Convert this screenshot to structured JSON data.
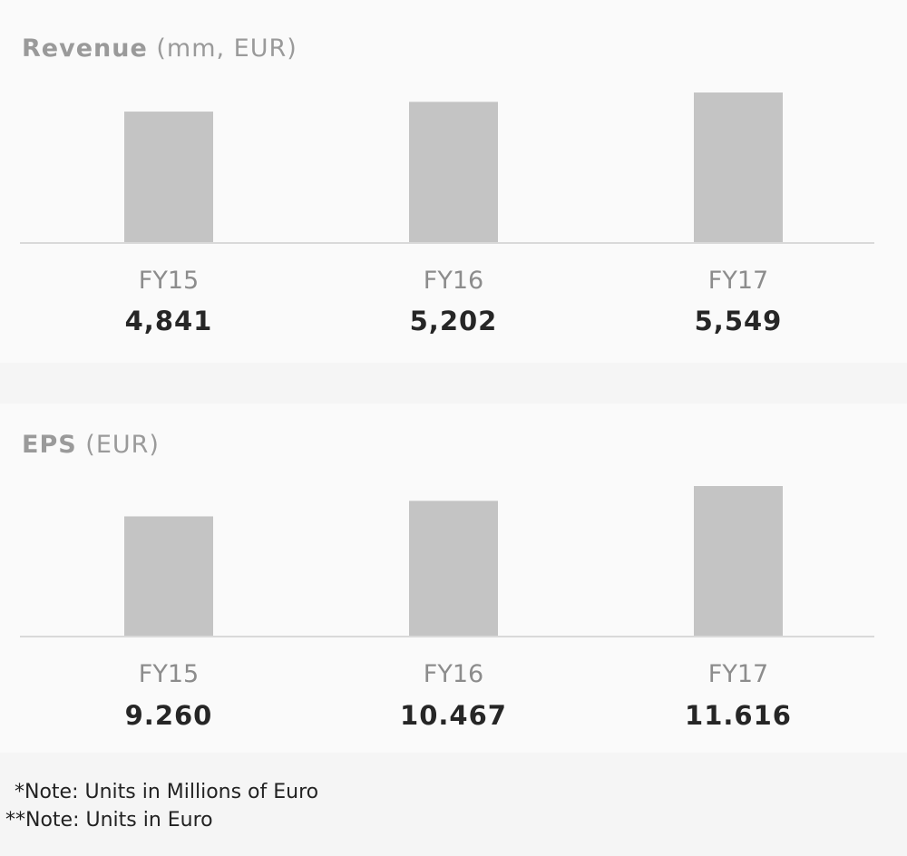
{
  "revenue_panel": {
    "title_main": "Revenue",
    "title_unit": "(mm, EUR)"
  },
  "eps_panel": {
    "title_main": "EPS",
    "title_unit": "(EUR)"
  },
  "chart_data": [
    {
      "type": "bar",
      "title": "Revenue (mm, EUR)",
      "categories": [
        "FY15",
        "FY16",
        "FY17"
      ],
      "values": [
        4841,
        5202,
        5549
      ],
      "value_labels": [
        "4,841",
        "5,202",
        "5,549"
      ],
      "color": "#c4c4c4",
      "baseline_color": "#d9d9d9"
    },
    {
      "type": "bar",
      "title": "EPS (EUR)",
      "categories": [
        "FY15",
        "FY16",
        "FY17"
      ],
      "values": [
        9.26,
        10.467,
        11.616
      ],
      "value_labels": [
        "9.260",
        "10.467",
        "11.616"
      ],
      "color": "#c4c4c4",
      "baseline_color": "#d9d9d9"
    }
  ],
  "notes": {
    "note1": "*Note: Units in Millions of Euro",
    "note2": "**Note: Units in Euro"
  }
}
